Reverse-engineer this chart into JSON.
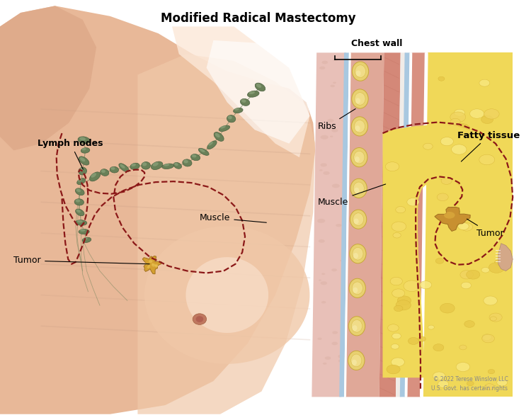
{
  "title": "Modified Radical Mastectomy",
  "title_fontsize": 12,
  "title_fontweight": "bold",
  "bg_color": "#ffffff",
  "copyright_text": "© 2022 Terese Winslow LLC\nU.S. Govt. has certain rights",
  "labels": {
    "lymph_nodes": "Lymph nodes",
    "tumor_left": "Tumor",
    "muscle": "Muscle",
    "chest_wall": "Chest wall",
    "ribs": "Ribs",
    "fatty_tissue": "Fatty tissue",
    "tumor_right": "Tumor"
  },
  "skin_base": "#e8b898",
  "skin_mid": "#dda888",
  "skin_dark": "#c89070",
  "skin_light": "#f0c8a8",
  "skin_vlight": "#fce8d8",
  "muscle_pink": "#d4887a",
  "muscle_dark": "#c07868",
  "rib_yellow": "#e8d070",
  "rib_outline": "#c8a848",
  "fatty_yellow": "#f0d858",
  "fatty_light": "#f8e888",
  "node_green": "#6a8058",
  "node_dark": "#4a6040",
  "tumor_gold": "#d4a030",
  "tumor_light": "#e8c050",
  "dashed_red": "#8b1818",
  "blue_line": "#a8c8e0",
  "blue_line2": "#88b0d0",
  "white_fascia": "#f0ece8",
  "pink_bg": "#e8c0b0"
}
